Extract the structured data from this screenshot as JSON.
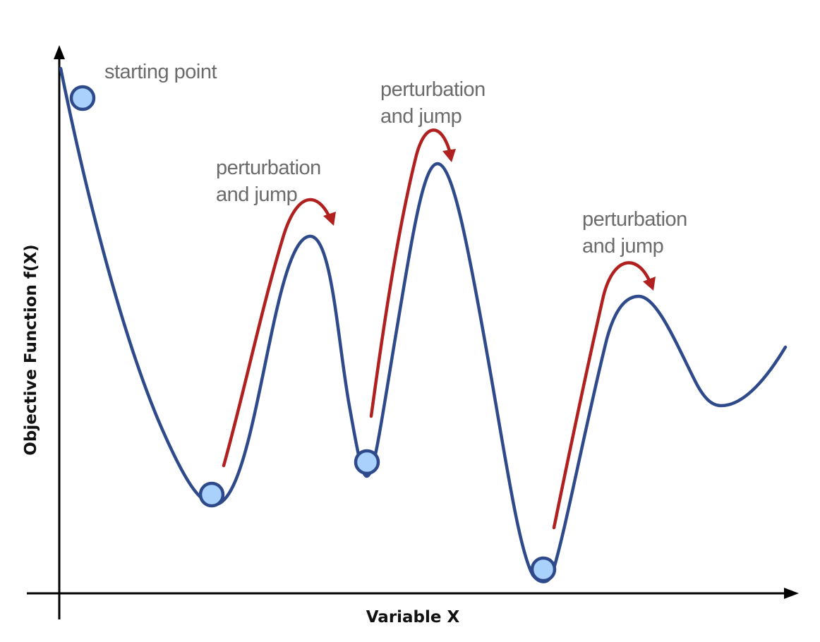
{
  "diagram": {
    "y_axis_label": "Objective Function f(X)",
    "x_axis_label": "Variable X",
    "annotations": {
      "start": "starting point",
      "jump1_line1": "perturbation",
      "jump1_line2": "and jump",
      "jump2_line1": "perturbation",
      "jump2_line2": "and jump",
      "jump3_line1": "perturbation",
      "jump3_line2": "and jump"
    },
    "colors": {
      "curve": "#2e4a8a",
      "arrow": "#b0201e",
      "ball_fill": "#a9d1fb",
      "ball_stroke": "#2e4a8a",
      "axes": "#000000",
      "text": "#6b6b6b"
    }
  }
}
